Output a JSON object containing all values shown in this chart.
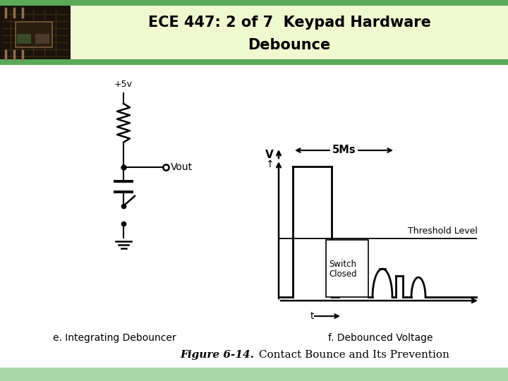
{
  "title_line1": "ECE 447: 2 of 7  Keypad Hardware",
  "title_line2": "Debounce",
  "header_bg": "#f0f8d0",
  "header_border": "#5aaa5a",
  "footer_bg": "#aad8aa",
  "main_bg": "#ffffff",
  "caption_e": "e. Integrating Debouncer",
  "caption_f": "f. Debounced Voltage",
  "figure_caption_bold": "Figure 6-14.",
  "figure_caption_normal": " Contact Bounce and Its Prevention",
  "label_5v": "+5v",
  "label_vout": "Vout",
  "label_v": "V",
  "label_t": "t",
  "label_5ms": "5Ms",
  "label_threshold": "Threshold Level",
  "label_switch1": "Switch",
  "label_switch2": "Closed"
}
